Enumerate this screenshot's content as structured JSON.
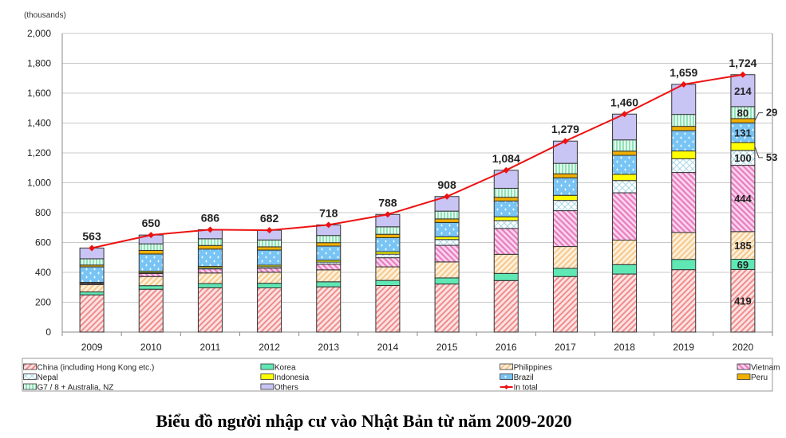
{
  "chart_data": {
    "type": "bar",
    "stacked": true,
    "unit_label": "(thousands)",
    "ylim": [
      0,
      2000
    ],
    "yticks": [
      "0",
      "200",
      "400",
      "600",
      "800",
      "1,000",
      "1,200",
      "1,400",
      "1,600",
      "1,800",
      "2,000"
    ],
    "grid": true,
    "legend_placement": "bottom",
    "categories": [
      "2009",
      "2010",
      "2011",
      "2012",
      "2013",
      "2014",
      "2015",
      "2016",
      "2017",
      "2018",
      "2019",
      "2020"
    ],
    "series": [
      {
        "name": "China (including Hong Kong etc.)",
        "color": "#f08c8c",
        "values": [
          249,
          287,
          297,
          296,
          303,
          312,
          322,
          345,
          372,
          389,
          418,
          419
        ]
      },
      {
        "name": "Korea",
        "color": "#5fe8b4",
        "values": [
          20,
          24,
          28,
          31,
          34,
          34,
          41,
          48,
          55,
          63,
          69,
          69
        ]
      },
      {
        "name": "Philippines",
        "color": "#f6c88a",
        "values": [
          49,
          61,
          71,
          74,
          80,
          91,
          107,
          128,
          146,
          164,
          180,
          185
        ]
      },
      {
        "name": "Vietnam",
        "color": "#e77cc0",
        "values": [
          7,
          20,
          27,
          27,
          38,
          61,
          111,
          173,
          240,
          317,
          402,
          444
        ]
      },
      {
        "name": "Nepal",
        "color": "#a8d8e8",
        "values": [
          3,
          6,
          8,
          10,
          14,
          24,
          39,
          53,
          69,
          82,
          92,
          100
        ]
      },
      {
        "name": "Indonesia",
        "color": "#ffff00",
        "values": [
          5,
          9,
          9,
          10,
          12,
          16,
          18,
          25,
          34,
          42,
          52,
          53
        ]
      },
      {
        "name": "Brazil",
        "color": "#78c4f4",
        "values": [
          104,
          116,
          116,
          101,
          95,
          94,
          96,
          106,
          117,
          127,
          136,
          131
        ]
      },
      {
        "name": "Peru",
        "color": "#f0b000",
        "values": [
          12,
          24,
          24,
          22,
          23,
          23,
          24,
          25,
          27,
          28,
          29,
          29
        ]
      },
      {
        "name": "G7 / 8 + Australia, NZ",
        "color": "#a6ecc6",
        "values": [
          42,
          44,
          45,
          46,
          48,
          50,
          52,
          60,
          70,
          75,
          80,
          80
        ]
      },
      {
        "name": "Others",
        "color": "#c8c4f4",
        "values": [
          72,
          59,
          61,
          65,
          71,
          83,
          98,
          121,
          149,
          173,
          201,
          214
        ]
      }
    ],
    "line": {
      "name": "In total",
      "color": "#ee1111",
      "values": [
        563,
        650,
        686,
        682,
        718,
        788,
        908,
        1084,
        1279,
        1460,
        1659,
        1724
      ]
    },
    "total_labels": [
      "563",
      "650",
      "686",
      "682",
      "718",
      "788",
      "908",
      "1,084",
      "1,279",
      "1,460",
      "1,659",
      "1,724"
    ],
    "data_labels_2020": {
      "China (including Hong Kong etc.)": "419",
      "Korea": "69",
      "Philippines": "185",
      "Vietnam": "444",
      "Nepal": "100",
      "Indonesia": "53",
      "Brazil": "131",
      "Peru": "29",
      "G7 / 8 + Australia, NZ": "80",
      "Others": "214"
    }
  },
  "caption": "Biểu đồ người nhập cư vào Nhật Bản từ năm 2009-2020"
}
